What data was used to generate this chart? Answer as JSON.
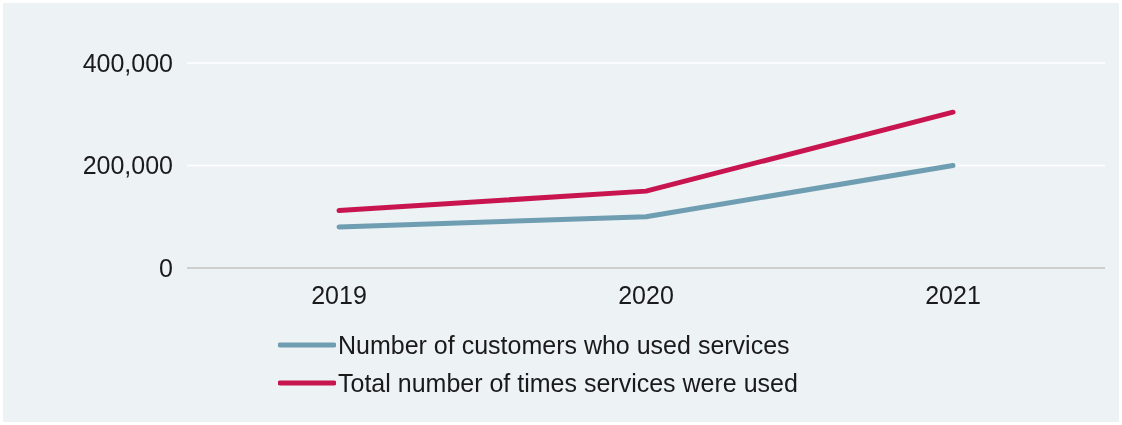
{
  "chart_data": {
    "type": "line",
    "categories": [
      "2019",
      "2020",
      "2021"
    ],
    "series": [
      {
        "name": "Number of customers who used services",
        "color": "#6f9db2",
        "values": [
          80000,
          100000,
          200000
        ]
      },
      {
        "name": "Total number of times services were used",
        "color": "#c8154f",
        "values": [
          112000,
          150000,
          304000
        ]
      }
    ],
    "ylim": [
      0,
      400000
    ],
    "yticks": [
      {
        "value": 0,
        "label": "0"
      },
      {
        "value": 200000,
        "label": "200,000"
      },
      {
        "value": 400000,
        "label": "400,000"
      }
    ],
    "grid": "y",
    "legend": "bottom"
  }
}
